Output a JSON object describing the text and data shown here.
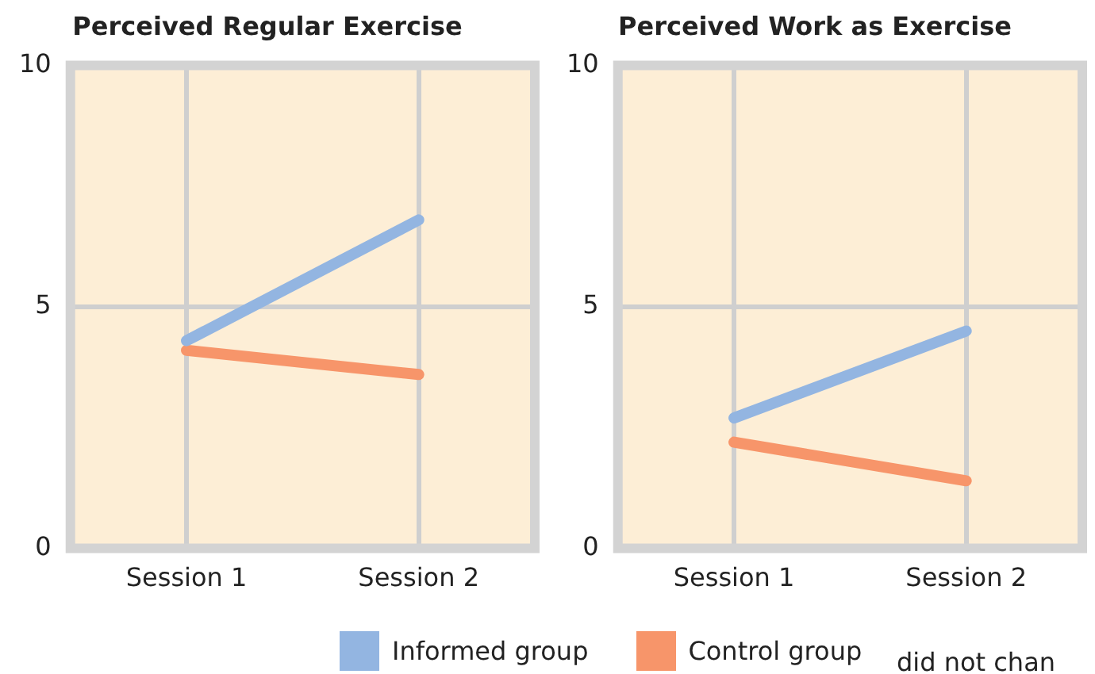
{
  "chart_data": [
    {
      "type": "line",
      "title": "Perceived Regular Exercise",
      "categories": [
        "Session 1",
        "Session 2"
      ],
      "series": [
        {
          "name": "Informed group",
          "color": "#93b5e1",
          "values": [
            4.3,
            6.8
          ]
        },
        {
          "name": "Control group",
          "color": "#f7956a",
          "values": [
            4.1,
            3.6
          ]
        }
      ],
      "ylim": [
        0,
        10
      ],
      "yticks": [
        0,
        5,
        10
      ],
      "grid": true,
      "legend": "bottom"
    },
    {
      "type": "line",
      "title": "Perceived Work as Exercise",
      "categories": [
        "Session 1",
        "Session 2"
      ],
      "series": [
        {
          "color": "#93b5e1",
          "values": [
            2.7,
            4.5
          ]
        },
        {
          "color": "#f7956a",
          "values": [
            2.2,
            1.4
          ]
        }
      ],
      "ylim": [
        0,
        10
      ],
      "yticks": [
        0,
        5,
        10
      ],
      "grid": true,
      "annotations": [
        "did not chan"
      ]
    }
  ]
}
